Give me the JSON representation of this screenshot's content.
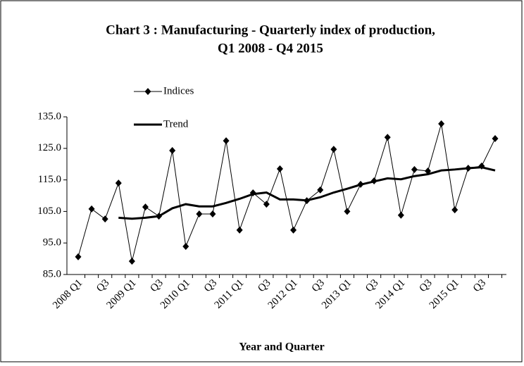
{
  "chart_data": {
    "type": "line",
    "title": [
      "Chart 3 : Manufacturing - Quarterly index of production,",
      "Q1 2008 - Q4 2015"
    ],
    "x_label": "Year and Quarter",
    "categories": [
      "2008 Q1",
      null,
      "Q3",
      null,
      "2009 Q1",
      null,
      "Q3",
      null,
      "2010 Q1",
      null,
      "Q3",
      null,
      "2011 Q1",
      null,
      "Q3",
      null,
      "2012 Q1",
      null,
      "Q3",
      null,
      "2013 Q1",
      null,
      "Q3",
      null,
      "2014 Q1",
      null,
      "Q3",
      null,
      "2015 Q1",
      null,
      "Q3",
      null
    ],
    "series": [
      {
        "name": "Indices",
        "color": "#000000",
        "marker": "diamond",
        "values": [
          90.6,
          105.8,
          102.6,
          114.0,
          89.2,
          106.4,
          103.5,
          124.3,
          93.9,
          104.2,
          104.2,
          127.4,
          99.1,
          110.9,
          107.3,
          118.5,
          99.1,
          108.4,
          111.8,
          124.7,
          105.0,
          113.6,
          114.7,
          128.5,
          103.8,
          118.3,
          117.8,
          132.8,
          105.5,
          118.7,
          119.4,
          128.1
        ]
      },
      {
        "name": "Trend",
        "color": "#000000",
        "values": [
          null,
          null,
          null,
          103.0,
          102.7,
          103.0,
          103.5,
          106.0,
          107.3,
          106.6,
          106.6,
          107.7,
          109.0,
          110.5,
          111.0,
          108.8,
          108.8,
          108.5,
          109.5,
          111.0,
          112.2,
          113.5,
          114.5,
          115.5,
          115.2,
          116.2,
          116.8,
          118.0,
          118.3,
          118.7,
          119.0,
          118.0
        ]
      }
    ],
    "ylim": [
      85,
      135
    ],
    "yticks": [
      {
        "value": 85,
        "label": "85.0"
      },
      {
        "value": 95,
        "label": "95.0"
      },
      {
        "value": 105,
        "label": "105.0"
      },
      {
        "value": 115,
        "label": "115.0"
      },
      {
        "value": 125,
        "label": "125.0"
      },
      {
        "value": 135,
        "label": "135.0"
      }
    ],
    "grid": false,
    "legend": "top-left"
  }
}
